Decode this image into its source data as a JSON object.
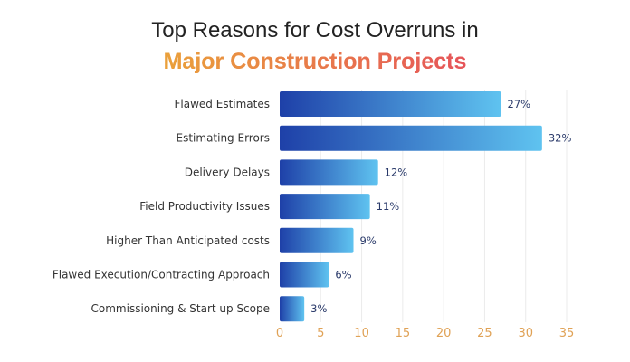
{
  "chart_data": {
    "type": "bar",
    "orientation": "horizontal",
    "title": "Top Reasons for Cost Overruns in",
    "subtitle": "Major Construction Projects",
    "categories": [
      "Flawed Estimates",
      "Estimating Errors",
      "Delivery Delays",
      "Field Productivity Issues",
      "Higher Than Anticipated costs",
      "Flawed Execution/Contracting Approach",
      "Commissioning & Start up Scope"
    ],
    "values": [
      27,
      32,
      12,
      11,
      9,
      6,
      3
    ],
    "data_labels": [
      "27%",
      "32%",
      "12%",
      "11%",
      "9%",
      "6%",
      "3%"
    ],
    "xlim": [
      0,
      35
    ],
    "xticks": [
      0,
      5,
      10,
      15,
      20,
      25,
      30,
      35
    ],
    "xlabel": "",
    "ylabel": "",
    "grid": "vertical",
    "colors": {
      "bar_start": "#1e40a8",
      "bar_end": "#5fc3f0",
      "tick": "#e0a256",
      "label": "#333333",
      "value_label": "#2a3a6a"
    }
  }
}
